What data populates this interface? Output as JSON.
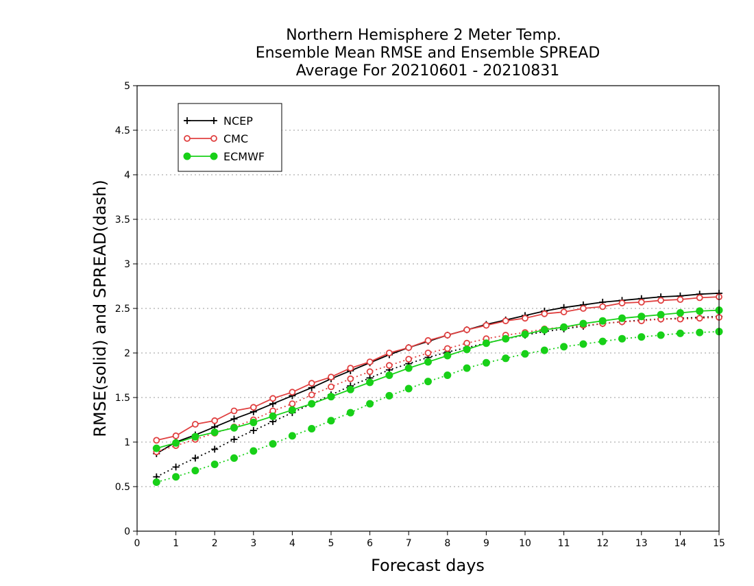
{
  "chart_data": {
    "type": "line",
    "title": "Northern Hemisphere 2 Meter Temp.",
    "subtitle": "Ensemble Mean RMSE and Ensemble SPREAD",
    "period": "Average For 20210601 - 20210831",
    "xlabel": "Forecast days",
    "ylabel": "RMSE(solid) and SPREAD(dash)",
    "xlim": [
      0,
      15
    ],
    "ylim": [
      0,
      5
    ],
    "x_ticks": [
      "0",
      "1",
      "2",
      "3",
      "4",
      "5",
      "6",
      "7",
      "8",
      "9",
      "10",
      "11",
      "12",
      "13",
      "14",
      "15"
    ],
    "y_ticks": [
      "0",
      "0.5",
      "1",
      "1.5",
      "2",
      "2.5",
      "3",
      "3.5",
      "4",
      "4.5",
      "5"
    ],
    "grid": "horizontal dotted",
    "legend_position": "top-left",
    "x": [
      0.5,
      1,
      1.5,
      2,
      2.5,
      3,
      3.5,
      4,
      4.5,
      5,
      5.5,
      6,
      6.5,
      7,
      7.5,
      8,
      8.5,
      9,
      9.5,
      10,
      10.5,
      11,
      11.5,
      12,
      12.5,
      13,
      13.5,
      14,
      14.5,
      15
    ],
    "series": [
      {
        "name": "NCEP",
        "color": "#000000",
        "marker": "plus",
        "rmse": [
          0.87,
          1.0,
          1.08,
          1.17,
          1.26,
          1.34,
          1.43,
          1.52,
          1.61,
          1.71,
          1.8,
          1.89,
          1.98,
          2.06,
          2.13,
          2.2,
          2.26,
          2.32,
          2.37,
          2.42,
          2.47,
          2.51,
          2.54,
          2.57,
          2.59,
          2.61,
          2.63,
          2.64,
          2.66,
          2.67
        ],
        "spread": [
          0.61,
          0.72,
          0.82,
          0.92,
          1.03,
          1.13,
          1.23,
          1.33,
          1.43,
          1.53,
          1.63,
          1.72,
          1.81,
          1.88,
          1.95,
          2.01,
          2.06,
          2.11,
          2.16,
          2.2,
          2.24,
          2.27,
          2.3,
          2.33,
          2.35,
          2.37,
          2.38,
          2.39,
          2.4,
          2.41
        ]
      },
      {
        "name": "CMC",
        "color": "#e04040",
        "marker": "circle",
        "rmse": [
          1.02,
          1.07,
          1.2,
          1.24,
          1.35,
          1.39,
          1.49,
          1.56,
          1.66,
          1.73,
          1.83,
          1.9,
          2.0,
          2.06,
          2.14,
          2.2,
          2.26,
          2.31,
          2.36,
          2.39,
          2.44,
          2.46,
          2.5,
          2.52,
          2.56,
          2.57,
          2.59,
          2.6,
          2.62,
          2.63
        ],
        "spread": [
          0.89,
          0.96,
          1.03,
          1.1,
          1.17,
          1.25,
          1.35,
          1.43,
          1.53,
          1.62,
          1.71,
          1.79,
          1.86,
          1.93,
          2.0,
          2.05,
          2.11,
          2.16,
          2.2,
          2.23,
          2.27,
          2.29,
          2.31,
          2.33,
          2.35,
          2.36,
          2.38,
          2.38,
          2.39,
          2.4
        ]
      },
      {
        "name": "ECMWF",
        "color": "#18d018",
        "marker": "dot",
        "rmse": [
          0.93,
          0.99,
          1.06,
          1.11,
          1.16,
          1.22,
          1.29,
          1.36,
          1.43,
          1.51,
          1.59,
          1.67,
          1.75,
          1.83,
          1.9,
          1.97,
          2.04,
          2.11,
          2.16,
          2.21,
          2.26,
          2.29,
          2.33,
          2.36,
          2.39,
          2.41,
          2.43,
          2.45,
          2.47,
          2.48
        ],
        "spread": [
          0.55,
          0.61,
          0.68,
          0.75,
          0.82,
          0.9,
          0.98,
          1.07,
          1.15,
          1.24,
          1.33,
          1.43,
          1.52,
          1.6,
          1.68,
          1.75,
          1.83,
          1.89,
          1.94,
          1.99,
          2.03,
          2.07,
          2.1,
          2.13,
          2.16,
          2.18,
          2.2,
          2.22,
          2.23,
          2.24
        ]
      }
    ]
  }
}
